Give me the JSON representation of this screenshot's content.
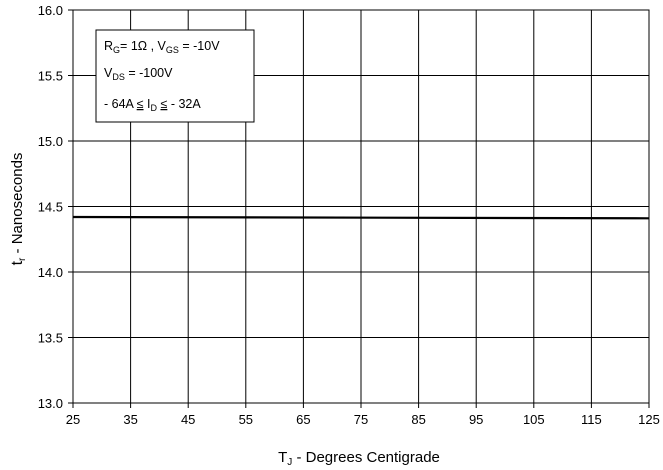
{
  "chart_data": {
    "type": "line",
    "title": "",
    "xlabel": {
      "main": "T",
      "sub": "J",
      "rest": " - Degrees Centigrade"
    },
    "ylabel": {
      "main": "t",
      "sub": "r",
      "rest": " - Nanoseconds"
    },
    "xlim": [
      25,
      125
    ],
    "ylim": [
      13.0,
      16.0
    ],
    "xticks": [
      "25",
      "35",
      "45",
      "55",
      "65",
      "75",
      "85",
      "95",
      "105",
      "115",
      "125"
    ],
    "yticks": [
      "13.0",
      "13.5",
      "14.0",
      "14.5",
      "15.0",
      "15.5",
      "16.0"
    ],
    "grid": true,
    "series": [
      {
        "x": [
          25,
          125
        ],
        "y": [
          14.42,
          14.41
        ],
        "color": "#000000"
      }
    ],
    "annotation": {
      "position": "top-left",
      "line1": {
        "a": "R",
        "a_sub": "G",
        "b": "= 1Ω , V",
        "b_sub": "GS",
        "c": " = -10V"
      },
      "line2": {
        "a": "V",
        "a_sub": "DS",
        "b": " = -100V"
      },
      "line3": {
        "a": "- 64A ",
        "le1": "≤",
        "b": " I",
        "b_sub": "D",
        "c": " ",
        "le2": "≤",
        "d": " - 32A"
      }
    }
  }
}
